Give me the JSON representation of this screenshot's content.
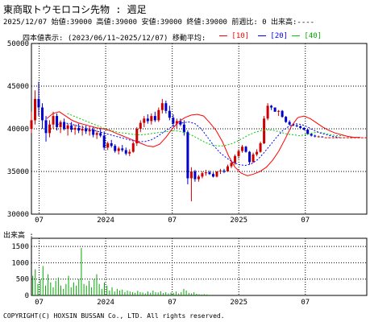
{
  "header": {
    "title": "東商取トウモロコシ先物 : 週足",
    "info": "2025/12/07 始値:39000 高値:39000 安値:39000 終値:39000 前週比: 0 出来高:----",
    "range_label": "四本値表示: (2023/06/11~2025/12/07) 移動平均:",
    "ma10": "[10]",
    "ma20": "[20]",
    "ma40": "[40]"
  },
  "volume_label": "出来高 :",
  "copyright": "COPYRIGHT(C) HOXSIN BUSSAN Co., LTD. All rights reserved.",
  "colors": {
    "up": "#cc0000",
    "down": "#0000cc",
    "ma10": "#ff0000",
    "ma20": "#0000ff",
    "ma40": "#00cc00",
    "volume": "#00aa00",
    "grid": "#000000"
  },
  "chart_data": [
    {
      "type": "candlestick",
      "y_ticks": [
        "50000",
        "45000",
        "40000",
        "35000",
        "30000"
      ],
      "ylim": [
        30000,
        50000
      ],
      "x_ticks": [
        "07",
        "2024",
        "07",
        "2025",
        "07"
      ],
      "x_tick_weeks": [
        3,
        29,
        55,
        81,
        107
      ],
      "weeks_total": 131,
      "ohlc": [
        [
          40000,
          42000,
          39500,
          41000
        ],
        [
          41000,
          44500,
          40500,
          43500
        ],
        [
          43500,
          45500,
          41500,
          42500
        ],
        [
          42500,
          43000,
          40000,
          41000
        ],
        [
          41000,
          41500,
          38500,
          39500
        ],
        [
          39500,
          41000,
          39000,
          40500
        ],
        [
          40500,
          42000,
          40000,
          41500
        ],
        [
          41500,
          41800,
          39800,
          40200
        ],
        [
          40200,
          41000,
          39500,
          40800
        ],
        [
          40800,
          41200,
          39800,
          40000
        ],
        [
          40000,
          40600,
          39200,
          40400
        ],
        [
          40400,
          40800,
          39600,
          39900
        ],
        [
          39900,
          40500,
          39300,
          40100
        ],
        [
          40100,
          40600,
          39500,
          39800
        ],
        [
          39800,
          40400,
          39200,
          40000
        ],
        [
          40000,
          40400,
          39400,
          39700
        ],
        [
          39700,
          40300,
          39200,
          39900
        ],
        [
          39900,
          40200,
          39000,
          39300
        ],
        [
          39300,
          39800,
          38800,
          39500
        ],
        [
          39500,
          40000,
          39000,
          39200
        ],
        [
          39200,
          39700,
          37500,
          37800
        ],
        [
          37800,
          38500,
          37500,
          38300
        ],
        [
          38300,
          38700,
          37800,
          38000
        ],
        [
          38000,
          38200,
          37200,
          37400
        ],
        [
          37400,
          37900,
          37000,
          37700
        ],
        [
          37700,
          38100,
          37300,
          37500
        ],
        [
          37500,
          37800,
          36900,
          37100
        ],
        [
          37100,
          37600,
          36800,
          37300
        ],
        [
          37300,
          38500,
          37200,
          38300
        ],
        [
          38300,
          40200,
          38000,
          40000
        ],
        [
          40000,
          41000,
          39600,
          40700
        ],
        [
          40700,
          41500,
          40200,
          41200
        ],
        [
          41200,
          41700,
          40600,
          40900
        ],
        [
          40900,
          41800,
          40500,
          41500
        ],
        [
          41500,
          42000,
          40800,
          41000
        ],
        [
          41000,
          42500,
          40800,
          42200
        ],
        [
          42200,
          43500,
          41800,
          43000
        ],
        [
          43000,
          43300,
          41800,
          42100
        ],
        [
          42100,
          42700,
          41000,
          41300
        ],
        [
          41300,
          41700,
          40300,
          40600
        ],
        [
          40600,
          41200,
          40000,
          40900
        ],
        [
          40900,
          41200,
          40300,
          40500
        ],
        [
          40500,
          41000,
          39200,
          39600
        ],
        [
          39600,
          39800,
          33500,
          34200
        ],
        [
          34200,
          35500,
          31500,
          35000
        ],
        [
          35000,
          35200,
          33800,
          34100
        ],
        [
          34100,
          34600,
          33800,
          34400
        ],
        [
          34400,
          35000,
          34200,
          34800
        ],
        [
          34800,
          35200,
          34500,
          34900
        ],
        [
          34900,
          35100,
          34600,
          34700
        ],
        [
          34700,
          34900,
          34300,
          34400
        ],
        [
          34400,
          35000,
          34300,
          35000
        ],
        [
          35000,
          35300,
          34700,
          35100
        ],
        [
          35100,
          35300,
          34800,
          35000
        ],
        [
          35000,
          35800,
          35000,
          35600
        ],
        [
          35600,
          36200,
          35400,
          36000
        ],
        [
          36000,
          37000,
          35800,
          36800
        ],
        [
          36800,
          37600,
          36500,
          37400
        ],
        [
          37400,
          38100,
          37200,
          37900
        ],
        [
          37900,
          38000,
          37200,
          37300
        ],
        [
          37300,
          37400,
          35800,
          36100
        ],
        [
          36100,
          37200,
          36000,
          37000
        ],
        [
          37000,
          37600,
          36800,
          37300
        ],
        [
          37300,
          38500,
          37200,
          38300
        ],
        [
          38300,
          41500,
          38200,
          41200
        ],
        [
          41200,
          43000,
          41000,
          42700
        ],
        [
          42700,
          42800,
          42200,
          42500
        ],
        [
          42500,
          42500,
          42000,
          42000
        ],
        [
          42000,
          42200,
          41500,
          42100
        ],
        [
          42100,
          42200,
          41300,
          41400
        ],
        [
          41400,
          41500,
          40700,
          40800
        ],
        [
          40800,
          41000,
          40400,
          40500
        ],
        [
          40500,
          40600,
          40300,
          40400
        ],
        [
          40400,
          40500,
          40200,
          40300
        ],
        [
          40300,
          40400,
          40000,
          40100
        ],
        [
          40100,
          40200,
          39800,
          39900
        ],
        [
          39900,
          40000,
          39300,
          39400
        ],
        [
          39400,
          39500,
          39100,
          39200
        ],
        [
          39200,
          39300,
          39000,
          39100
        ],
        [
          39100,
          39200,
          39000,
          39100
        ],
        [
          39100,
          39100,
          39000,
          39000
        ],
        [
          39000,
          39000,
          39000,
          39000
        ],
        [
          39000,
          39000,
          39000,
          39000
        ],
        [
          39000,
          39000,
          39000,
          39000
        ],
        [
          39000,
          39000,
          39000,
          39000
        ],
        [
          39000,
          39000,
          39000,
          39000
        ],
        [
          39000,
          39000,
          39000,
          39000
        ],
        [
          39000,
          39000,
          39000,
          39000
        ],
        [
          39000,
          39000,
          39000,
          39000
        ],
        [
          39000,
          39000,
          39000,
          39000
        ],
        [
          39000,
          39000,
          39000,
          39000
        ],
        [
          39000,
          39000,
          39000,
          39000
        ],
        [
          39000,
          39000,
          39000,
          39000
        ]
      ],
      "ohlc_start_week": 0,
      "ohlc_step": 1.42,
      "ma10": [
        41200,
        41800,
        42000,
        41500,
        41000,
        40700,
        40500,
        40300,
        40100,
        40000,
        39800,
        39500,
        39200,
        38900,
        38600,
        38300,
        38000,
        37900,
        38200,
        39000,
        40000,
        40800,
        41300,
        41600,
        41700,
        41500,
        40700,
        39800,
        38500,
        36800,
        35500,
        34800,
        34500,
        34700,
        35000,
        35500,
        36300,
        37400,
        38800,
        40300,
        41300,
        41500,
        41200,
        40700,
        40200,
        39800,
        39500,
        39300,
        39100,
        39000,
        39000
      ],
      "ma20": [
        40500,
        40700,
        40600,
        40400,
        40200,
        40000,
        39800,
        39600,
        39400,
        39200,
        39000,
        38800,
        38600,
        38500,
        38500,
        38700,
        39100,
        39600,
        40100,
        40500,
        40700,
        40800,
        40600,
        40000,
        39000,
        38000,
        37200,
        36600,
        36100,
        35800,
        35700,
        35900,
        36400,
        37200,
        38100,
        39000,
        39800,
        40300,
        40600,
        40500,
        40200,
        39800,
        39500,
        39300,
        39100,
        39000
      ],
      "ma40": [
        41800,
        41500,
        41200,
        40900,
        40600,
        40300,
        40000,
        39800,
        39600,
        39500,
        39400,
        39300,
        39300,
        39400,
        39500,
        39600,
        39700,
        39800,
        39700,
        39500,
        39200,
        38800,
        38400,
        38100,
        38000,
        38000,
        38200,
        38500,
        38900,
        39300,
        39600,
        39800,
        39900,
        39800,
        39600,
        39400,
        39300,
        39200,
        39300,
        39500,
        39600,
        39500,
        39300,
        39200,
        39200
      ],
      "ma_start_weeks": [
        6,
        10,
        14
      ],
      "ma_step": 2.45
    },
    {
      "type": "bar",
      "name": "volume",
      "y_ticks": [
        "1500",
        "1000",
        "500",
        "0"
      ],
      "ylim": [
        0,
        1750
      ],
      "values": [
        600,
        800,
        350,
        500,
        900,
        300,
        650,
        400,
        250,
        450,
        550,
        300,
        200,
        350,
        600,
        250,
        400,
        300,
        500,
        1450,
        350,
        300,
        450,
        250,
        500,
        650,
        350,
        200,
        400,
        300,
        150,
        250,
        120,
        200,
        150,
        180,
        100,
        150,
        120,
        100,
        80,
        140,
        100,
        90,
        60,
        120,
        80,
        150,
        100,
        90,
        130,
        70,
        100,
        60,
        90,
        80,
        120,
        60,
        100,
        200,
        150,
        80,
        60,
        100,
        50,
        40,
        30,
        40,
        30,
        20
      ]
    }
  ]
}
